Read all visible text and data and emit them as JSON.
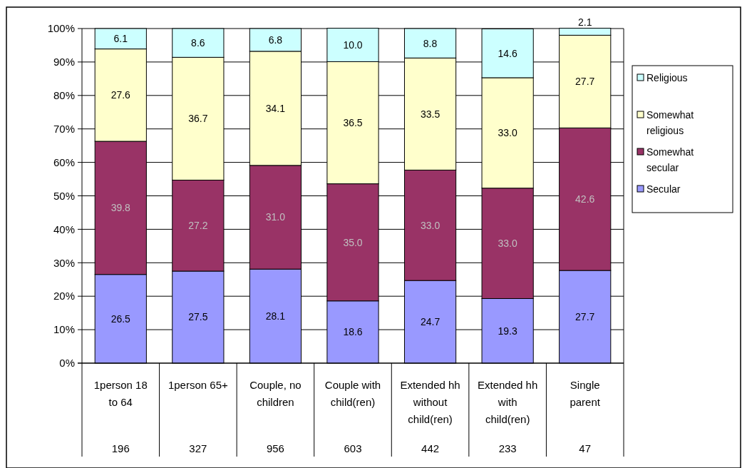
{
  "chart_data": {
    "type": "bar",
    "stacked": true,
    "categories": [
      "1person 18 to 64",
      "1person 65+",
      "Couple, no children",
      "Couple with child(ren)",
      "Extended hh without child(ren)",
      "Extended hh with child(ren)",
      "Single parent"
    ],
    "series": [
      {
        "name": "Secular",
        "color": "#9999ff",
        "values": [
          26.5,
          27.5,
          28.1,
          18.6,
          24.7,
          19.3,
          27.7
        ],
        "value_labels": [
          "26.5",
          "27.5",
          "28.1",
          "18.6",
          "24.7",
          "19.3",
          "27.7"
        ]
      },
      {
        "name": "Somewhat secular",
        "color": "#993366",
        "values": [
          39.8,
          27.2,
          31.0,
          35.0,
          33.0,
          33.0,
          42.6
        ],
        "value_labels": [
          "39.8",
          "27.2",
          "31.0",
          "35.0",
          "33.0",
          "33.0",
          "42.6"
        ]
      },
      {
        "name": "Somewhat religious",
        "color": "#ffffcc",
        "values": [
          27.6,
          36.7,
          34.1,
          36.5,
          33.5,
          33.0,
          27.7
        ],
        "value_labels": [
          "27.6",
          "36.7",
          "34.1",
          "36.5",
          "33.5",
          "33.0",
          "27.7"
        ]
      },
      {
        "name": "Religious",
        "color": "#ccffff",
        "values": [
          6.1,
          8.6,
          6.8,
          10.0,
          8.8,
          14.6,
          2.1
        ],
        "value_labels": [
          "6.1",
          "8.6",
          "6.8",
          "10.0",
          "8.8",
          "14.6",
          "2.1"
        ]
      }
    ],
    "ylim": [
      0,
      100
    ],
    "yticks": [
      {
        "value": 0,
        "label": "0%"
      },
      {
        "value": 10,
        "label": "10%"
      },
      {
        "value": 20,
        "label": "20%"
      },
      {
        "value": 30,
        "label": "30%"
      },
      {
        "value": 40,
        "label": "40%"
      },
      {
        "value": 50,
        "label": "50%"
      },
      {
        "value": 60,
        "label": "60%"
      },
      {
        "value": 70,
        "label": "70%"
      },
      {
        "value": 80,
        "label": "80%"
      },
      {
        "value": 90,
        "label": "90%"
      },
      {
        "value": 100,
        "label": "100%"
      }
    ],
    "grid": "y",
    "legend": "right",
    "annotations": [
      "196",
      "327",
      "956",
      "603",
      "442",
      "233",
      "47"
    ]
  }
}
